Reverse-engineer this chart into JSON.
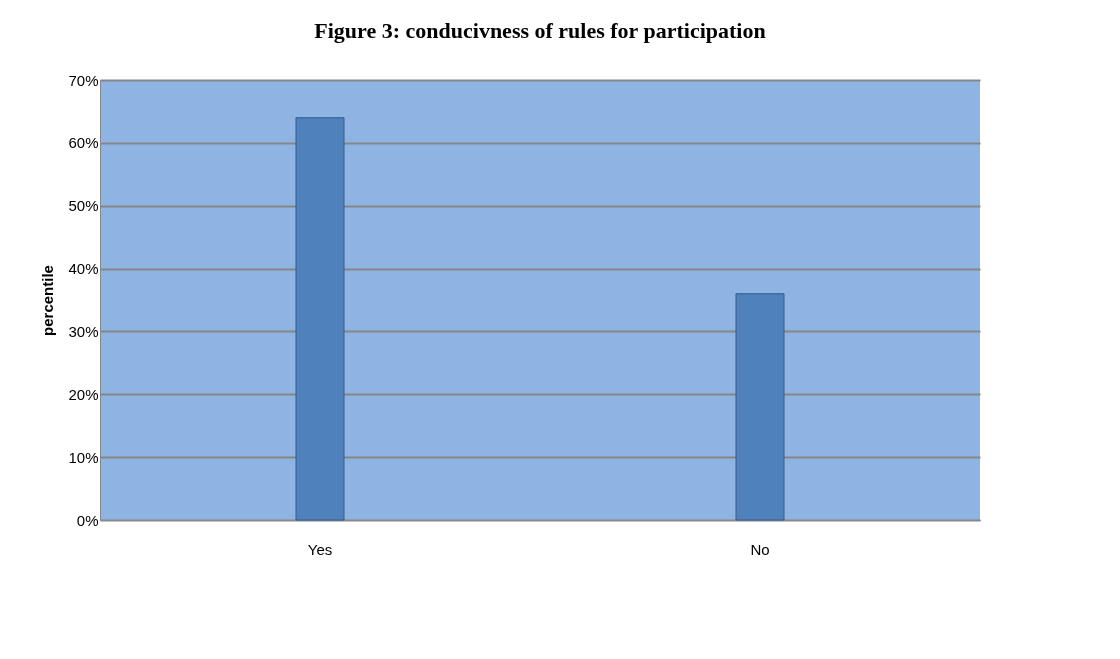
{
  "chart_data": {
    "type": "bar",
    "title": "Figure 3: conducivness of rules for participation",
    "ylabel": "percentile",
    "categories": [
      "Yes",
      "No"
    ],
    "values": [
      64,
      36
    ],
    "color": "#4f81bd",
    "ylim": [
      0,
      70
    ],
    "yticks": [
      {
        "value": 0,
        "label": "0%"
      },
      {
        "value": 10,
        "label": "10%"
      },
      {
        "value": 20,
        "label": "20%"
      },
      {
        "value": 30,
        "label": "30%"
      },
      {
        "value": 40,
        "label": "40%"
      },
      {
        "value": 50,
        "label": "50%"
      },
      {
        "value": 60,
        "label": "60%"
      },
      {
        "value": 70,
        "label": "70%"
      }
    ],
    "grid": "y"
  }
}
